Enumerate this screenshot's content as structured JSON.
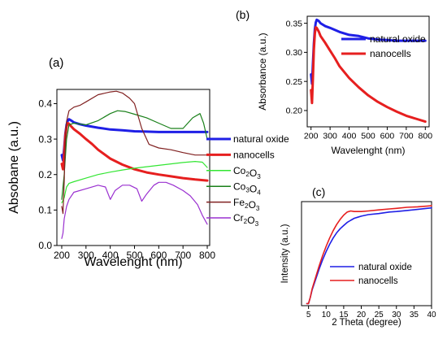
{
  "charts": [
    {
      "panel_label": "(a)",
      "chart_data": {
        "type": "line",
        "xlabel": "Wavelenght (nm)",
        "ylabel": "Absobane (a.u.)",
        "xlim": [
          180,
          810
        ],
        "ylim": [
          0.0,
          0.44
        ],
        "xticks": [
          200,
          300,
          400,
          500,
          600,
          700,
          800
        ],
        "yticks": [
          0.0,
          0.1,
          0.2,
          0.3,
          0.4
        ],
        "ytick_labels": [
          "0.0",
          "0.1",
          "0.2",
          "0.3",
          "0.4"
        ],
        "legend_position": "right-outside",
        "series": [
          {
            "name": "natural oxide",
            "name_sub": "",
            "color": "#1f1fe6",
            "width": 3,
            "x": [
              200,
              205,
              210,
              215,
              220,
              225,
              230,
              240,
              250,
              275,
              300,
              350,
              400,
              450,
              500,
              550,
              600,
              650,
              700,
              750,
              800
            ],
            "y": [
              0.255,
              0.24,
              0.275,
              0.315,
              0.34,
              0.352,
              0.356,
              0.352,
              0.347,
              0.342,
              0.338,
              0.332,
              0.327,
              0.325,
              0.322,
              0.321,
              0.32,
              0.32,
              0.32,
              0.32,
              0.32
            ]
          },
          {
            "name": "nanocells",
            "name_sub": "",
            "color": "#e61f1f",
            "width": 3,
            "x": [
              200,
              205,
              210,
              215,
              220,
              225,
              230,
              240,
              250,
              275,
              300,
              325,
              350,
              400,
              450,
              500,
              550,
              600,
              650,
              700,
              750,
              800
            ],
            "y": [
              0.23,
              0.215,
              0.26,
              0.31,
              0.335,
              0.345,
              0.343,
              0.335,
              0.328,
              0.315,
              0.3,
              0.286,
              0.27,
              0.245,
              0.228,
              0.215,
              0.206,
              0.2,
              0.195,
              0.19,
              0.186,
              0.183
            ]
          },
          {
            "name": "Co",
            "name_sub": "2",
            "name2": "O",
            "name_sub2": "3",
            "color": "#33e633",
            "width": 1.2,
            "x": [
              200,
              210,
              220,
              230,
              250,
              300,
              350,
              400,
              450,
              500,
              550,
              600,
              650,
              700,
              750,
              780,
              800
            ],
            "y": [
              0.12,
              0.135,
              0.165,
              0.175,
              0.18,
              0.19,
              0.2,
              0.207,
              0.213,
              0.218,
              0.222,
              0.226,
              0.23,
              0.234,
              0.237,
              0.235,
              0.22
            ]
          },
          {
            "name": "Co",
            "name_sub": "3",
            "name2": "O",
            "name_sub2": "4",
            "color": "#1a801a",
            "width": 1.2,
            "x": [
              200,
              210,
              220,
              230,
              250,
              300,
              350,
              400,
              430,
              460,
              500,
              550,
              600,
              650,
              700,
              740,
              770,
              785,
              800
            ],
            "y": [
              0.13,
              0.2,
              0.3,
              0.34,
              0.345,
              0.34,
              0.352,
              0.372,
              0.38,
              0.378,
              0.37,
              0.36,
              0.345,
              0.33,
              0.33,
              0.36,
              0.372,
              0.345,
              0.3
            ]
          },
          {
            "name": "Fe",
            "name_sub": "2",
            "name2": "O",
            "name_sub2": "3",
            "color": "#802020",
            "width": 1.2,
            "x": [
              200,
              205,
              210,
              215,
              220,
              230,
              250,
              275,
              300,
              350,
              400,
              425,
              450,
              480,
              500,
              530,
              560,
              600,
              650,
              700,
              750,
              800
            ],
            "y": [
              0.11,
              0.09,
              0.18,
              0.3,
              0.35,
              0.38,
              0.39,
              0.395,
              0.405,
              0.425,
              0.433,
              0.435,
              0.43,
              0.415,
              0.4,
              0.33,
              0.285,
              0.275,
              0.27,
              0.262,
              0.255,
              0.255
            ]
          },
          {
            "name": "Cr",
            "name_sub": "2",
            "name2": "O",
            "name_sub2": "3",
            "color": "#9a30d0",
            "width": 1.2,
            "x": [
              200,
              205,
              210,
              220,
              230,
              250,
              300,
              350,
              380,
              400,
              420,
              450,
              480,
              510,
              530,
              550,
              580,
              600,
              630,
              660,
              700,
              730,
              760,
              780,
              800
            ],
            "y": [
              0.02,
              0.035,
              0.075,
              0.11,
              0.13,
              0.15,
              0.16,
              0.17,
              0.165,
              0.13,
              0.155,
              0.17,
              0.17,
              0.16,
              0.125,
              0.145,
              0.17,
              0.178,
              0.178,
              0.17,
              0.155,
              0.14,
              0.115,
              0.085,
              0.06
            ]
          }
        ]
      }
    },
    {
      "panel_label": "(b)",
      "chart_data": {
        "type": "line",
        "xlabel": "Wavelenght (nm)",
        "ylabel": "Absorbance (a.u.)",
        "xlim": [
          180,
          820
        ],
        "ylim": [
          0.172,
          0.362
        ],
        "xticks": [
          200,
          300,
          400,
          500,
          600,
          700,
          800
        ],
        "yticks": [
          0.2,
          0.25,
          0.3,
          0.35
        ],
        "ytick_labels": [
          "0.20",
          "0.25",
          "0.30",
          "0.35"
        ],
        "legend_position": "top-right",
        "series": [
          {
            "name": "natural oxide",
            "name_sub": "",
            "color": "#1f1fe6",
            "width": 3,
            "x": [
              200,
              205,
              210,
              215,
              220,
              225,
              230,
              240,
              250,
              275,
              300,
              350,
              400,
              450,
              500,
              550,
              600,
              650,
              700,
              750,
              800
            ],
            "y": [
              0.262,
              0.246,
              0.28,
              0.315,
              0.34,
              0.351,
              0.356,
              0.354,
              0.35,
              0.345,
              0.342,
              0.335,
              0.33,
              0.328,
              0.324,
              0.322,
              0.321,
              0.32,
              0.32,
              0.32,
              0.32
            ]
          },
          {
            "name": "nanocells",
            "name_sub": "",
            "color": "#e61f1f",
            "width": 3,
            "x": [
              200,
              205,
              210,
              215,
              220,
              225,
              230,
              240,
              250,
              275,
              300,
              325,
              350,
              400,
              450,
              500,
              550,
              600,
              650,
              700,
              750,
              800
            ],
            "y": [
              0.235,
              0.213,
              0.255,
              0.305,
              0.332,
              0.343,
              0.342,
              0.336,
              0.328,
              0.316,
              0.303,
              0.29,
              0.276,
              0.256,
              0.24,
              0.226,
              0.215,
              0.206,
              0.198,
              0.191,
              0.186,
              0.181
            ]
          }
        ]
      }
    },
    {
      "panel_label": "(c)",
      "chart_data": {
        "type": "line",
        "xlabel": "2 Theta (degree)",
        "ylabel": "Intensity (a.u.)",
        "xlim": [
          3,
          40
        ],
        "ylim": [
          0,
          1.0
        ],
        "xticks": [
          5,
          10,
          15,
          20,
          25,
          30,
          35,
          40
        ],
        "yticks": [],
        "ytick_labels": [],
        "legend_position": "bottom-right",
        "series": [
          {
            "name": "natural oxide",
            "name_sub": "",
            "color": "#1f1fe6",
            "width": 1.6,
            "x": [
              4.5,
              5,
              5.5,
              6,
              7,
              8,
              9,
              10,
              11,
              12,
              13,
              14,
              15,
              16,
              17,
              18,
              19,
              20,
              22,
              25,
              28,
              30,
              33,
              36,
              40
            ],
            "y": [
              0.02,
              0.02,
              0.08,
              0.15,
              0.25,
              0.35,
              0.44,
              0.52,
              0.59,
              0.65,
              0.7,
              0.74,
              0.77,
              0.8,
              0.82,
              0.84,
              0.85,
              0.86,
              0.875,
              0.885,
              0.9,
              0.905,
              0.915,
              0.925,
              0.94
            ]
          },
          {
            "name": "nanocells",
            "name_sub": "",
            "color": "#e61f1f",
            "width": 1.6,
            "x": [
              4.5,
              5,
              5.5,
              6,
              7,
              8,
              9,
              10,
              11,
              12,
              13,
              14,
              15,
              16,
              17,
              18,
              19,
              20,
              22,
              25,
              28,
              30,
              33,
              36,
              40
            ],
            "y": [
              0.02,
              0.02,
              0.08,
              0.16,
              0.27,
              0.38,
              0.48,
              0.57,
              0.65,
              0.72,
              0.78,
              0.83,
              0.87,
              0.9,
              0.91,
              0.905,
              0.905,
              0.905,
              0.91,
              0.92,
              0.93,
              0.935,
              0.945,
              0.95,
              0.96
            ]
          }
        ]
      }
    }
  ]
}
